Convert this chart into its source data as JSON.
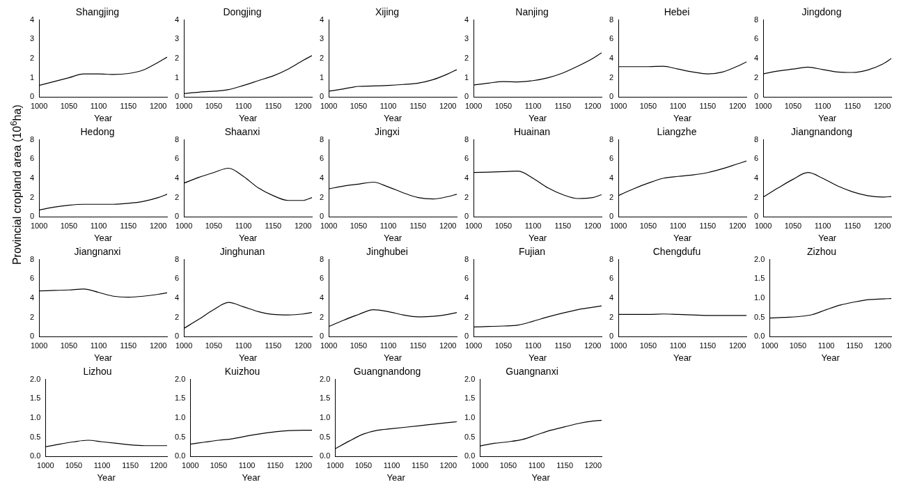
{
  "chart_data": [
    {
      "type": "line",
      "title": "Shangjing",
      "xlabel": "Year",
      "x": [
        1000,
        1025,
        1050,
        1075,
        1100,
        1125,
        1150,
        1175,
        1200,
        1215
      ],
      "values": [
        0.6,
        0.8,
        1.0,
        1.2,
        1.2,
        1.17,
        1.22,
        1.4,
        1.8,
        2.07
      ],
      "color": "#000000",
      "xlim": [
        1000,
        1215
      ],
      "xticks": [
        1000,
        1050,
        1100,
        1150,
        1200
      ],
      "ylim": [
        0,
        4
      ],
      "yticks": [
        0,
        1,
        2,
        3,
        4
      ]
    },
    {
      "type": "line",
      "title": "Dongjing",
      "xlabel": "Year",
      "x": [
        1000,
        1025,
        1050,
        1075,
        1100,
        1125,
        1150,
        1175,
        1200,
        1215
      ],
      "values": [
        0.18,
        0.25,
        0.3,
        0.38,
        0.6,
        0.85,
        1.1,
        1.45,
        1.9,
        2.15
      ],
      "color": "#000000",
      "xlim": [
        1000,
        1215
      ],
      "xticks": [
        1000,
        1050,
        1100,
        1150,
        1200
      ],
      "ylim": [
        0,
        4
      ],
      "yticks": [
        0,
        1,
        2,
        3,
        4
      ]
    },
    {
      "type": "line",
      "title": "Xijing",
      "xlabel": "Year",
      "x": [
        1000,
        1025,
        1050,
        1075,
        1100,
        1125,
        1150,
        1175,
        1200,
        1215
      ],
      "values": [
        0.3,
        0.42,
        0.55,
        0.57,
        0.6,
        0.65,
        0.72,
        0.9,
        1.2,
        1.42
      ],
      "color": "#000000",
      "xlim": [
        1000,
        1215
      ],
      "xticks": [
        1000,
        1050,
        1100,
        1150,
        1200
      ],
      "ylim": [
        0,
        4
      ],
      "yticks": [
        0,
        1,
        2,
        3,
        4
      ]
    },
    {
      "type": "line",
      "title": "Nanjing",
      "xlabel": "Year",
      "x": [
        1000,
        1025,
        1050,
        1075,
        1100,
        1125,
        1150,
        1175,
        1200,
        1215
      ],
      "values": [
        0.62,
        0.72,
        0.8,
        0.78,
        0.85,
        1.0,
        1.25,
        1.6,
        2.0,
        2.3
      ],
      "color": "#000000",
      "xlim": [
        1000,
        1215
      ],
      "xticks": [
        1000,
        1050,
        1100,
        1150,
        1200
      ],
      "ylim": [
        0,
        4
      ],
      "yticks": [
        0,
        1,
        2,
        3,
        4
      ]
    },
    {
      "type": "line",
      "title": "Hebei",
      "xlabel": "Year",
      "x": [
        1000,
        1025,
        1050,
        1075,
        1100,
        1125,
        1150,
        1175,
        1200,
        1215
      ],
      "values": [
        3.15,
        3.15,
        3.15,
        3.2,
        2.9,
        2.6,
        2.4,
        2.6,
        3.2,
        3.65
      ],
      "color": "#000000",
      "xlim": [
        1000,
        1215
      ],
      "xticks": [
        1000,
        1050,
        1100,
        1150,
        1200
      ],
      "ylim": [
        0,
        8
      ],
      "yticks": [
        0,
        2,
        4,
        6,
        8
      ]
    },
    {
      "type": "line",
      "title": "Jingdong",
      "xlabel": "Year",
      "x": [
        1000,
        1025,
        1050,
        1075,
        1100,
        1125,
        1150,
        1175,
        1200,
        1215
      ],
      "values": [
        2.4,
        2.7,
        2.9,
        3.1,
        2.85,
        2.6,
        2.55,
        2.8,
        3.4,
        4.0
      ],
      "color": "#000000",
      "xlim": [
        1000,
        1215
      ],
      "xticks": [
        1000,
        1050,
        1100,
        1150,
        1200
      ],
      "ylim": [
        0,
        8
      ],
      "yticks": [
        0,
        2,
        4,
        6,
        8
      ]
    },
    {
      "type": "line",
      "title": "Hedong",
      "xlabel": "Year",
      "ylabel": "Provincial cropland area (10$^{6}$ha)",
      "x": [
        1000,
        1025,
        1050,
        1075,
        1100,
        1125,
        1150,
        1175,
        1200,
        1215
      ],
      "values": [
        0.7,
        1.0,
        1.2,
        1.3,
        1.3,
        1.3,
        1.4,
        1.6,
        2.0,
        2.35
      ],
      "color": "#000000",
      "xlim": [
        1000,
        1215
      ],
      "xticks": [
        1000,
        1050,
        1100,
        1150,
        1200
      ],
      "ylim": [
        0,
        8
      ],
      "yticks": [
        0,
        2,
        4,
        6,
        8
      ]
    },
    {
      "type": "line",
      "title": "Shaanxi",
      "xlabel": "Year",
      "x": [
        1000,
        1025,
        1050,
        1075,
        1100,
        1125,
        1150,
        1175,
        1200,
        1215
      ],
      "values": [
        3.5,
        4.1,
        4.6,
        5.05,
        4.2,
        3.0,
        2.2,
        1.7,
        1.7,
        2.0
      ],
      "color": "#000000",
      "xlim": [
        1000,
        1215
      ],
      "xticks": [
        1000,
        1050,
        1100,
        1150,
        1200
      ],
      "ylim": [
        0,
        8
      ],
      "yticks": [
        0,
        2,
        4,
        6,
        8
      ]
    },
    {
      "type": "line",
      "title": "Jingxi",
      "xlabel": "Year",
      "x": [
        1000,
        1025,
        1050,
        1075,
        1100,
        1125,
        1150,
        1175,
        1200,
        1215
      ],
      "values": [
        2.9,
        3.2,
        3.4,
        3.6,
        3.1,
        2.5,
        2.0,
        1.85,
        2.1,
        2.35
      ],
      "color": "#000000",
      "xlim": [
        1000,
        1215
      ],
      "xticks": [
        1000,
        1050,
        1100,
        1150,
        1200
      ],
      "ylim": [
        0,
        8
      ],
      "yticks": [
        0,
        2,
        4,
        6,
        8
      ]
    },
    {
      "type": "line",
      "title": "Huainan",
      "xlabel": "Year",
      "x": [
        1000,
        1025,
        1050,
        1075,
        1100,
        1125,
        1150,
        1175,
        1200,
        1215
      ],
      "values": [
        4.6,
        4.65,
        4.7,
        4.75,
        4.0,
        3.0,
        2.3,
        1.9,
        2.0,
        2.3
      ],
      "color": "#000000",
      "xlim": [
        1000,
        1215
      ],
      "xticks": [
        1000,
        1050,
        1100,
        1150,
        1200
      ],
      "ylim": [
        0,
        8
      ],
      "yticks": [
        0,
        2,
        4,
        6,
        8
      ]
    },
    {
      "type": "line",
      "title": "Liangzhe",
      "xlabel": "Year",
      "x": [
        1000,
        1025,
        1050,
        1075,
        1100,
        1125,
        1150,
        1175,
        1200,
        1215
      ],
      "values": [
        2.2,
        2.9,
        3.5,
        4.0,
        4.2,
        4.35,
        4.6,
        5.0,
        5.5,
        5.8
      ],
      "color": "#000000",
      "xlim": [
        1000,
        1215
      ],
      "xticks": [
        1000,
        1050,
        1100,
        1150,
        1200
      ],
      "ylim": [
        0,
        8
      ],
      "yticks": [
        0,
        2,
        4,
        6,
        8
      ]
    },
    {
      "type": "line",
      "title": "Jiangnandong",
      "xlabel": "Year",
      "x": [
        1000,
        1025,
        1050,
        1075,
        1100,
        1125,
        1150,
        1175,
        1200,
        1215
      ],
      "values": [
        2.05,
        3.0,
        3.9,
        4.6,
        4.0,
        3.2,
        2.6,
        2.2,
        2.05,
        2.1
      ],
      "color": "#000000",
      "xlim": [
        1000,
        1215
      ],
      "xticks": [
        1000,
        1050,
        1100,
        1150,
        1200
      ],
      "ylim": [
        0,
        8
      ],
      "yticks": [
        0,
        2,
        4,
        6,
        8
      ]
    },
    {
      "type": "line",
      "title": "Jiangnanxi",
      "xlabel": "Year",
      "x": [
        1000,
        1025,
        1050,
        1075,
        1100,
        1125,
        1150,
        1175,
        1200,
        1215
      ],
      "values": [
        4.75,
        4.8,
        4.85,
        4.95,
        4.6,
        4.2,
        4.1,
        4.2,
        4.4,
        4.55
      ],
      "color": "#000000",
      "xlim": [
        1000,
        1215
      ],
      "xticks": [
        1000,
        1050,
        1100,
        1150,
        1200
      ],
      "ylim": [
        0,
        8
      ],
      "yticks": [
        0,
        2,
        4,
        6,
        8
      ]
    },
    {
      "type": "line",
      "title": "Jinghunan",
      "xlabel": "Year",
      "x": [
        1000,
        1025,
        1050,
        1075,
        1100,
        1125,
        1150,
        1175,
        1200,
        1215
      ],
      "values": [
        0.85,
        1.8,
        2.8,
        3.55,
        3.1,
        2.6,
        2.3,
        2.25,
        2.35,
        2.5
      ],
      "color": "#000000",
      "xlim": [
        1000,
        1215
      ],
      "xticks": [
        1000,
        1050,
        1100,
        1150,
        1200
      ],
      "ylim": [
        0,
        8
      ],
      "yticks": [
        0,
        2,
        4,
        6,
        8
      ]
    },
    {
      "type": "line",
      "title": "Jinghubei",
      "xlabel": "Year",
      "x": [
        1000,
        1025,
        1050,
        1075,
        1100,
        1125,
        1150,
        1175,
        1200,
        1215
      ],
      "values": [
        1.05,
        1.7,
        2.3,
        2.8,
        2.6,
        2.25,
        2.05,
        2.1,
        2.3,
        2.5
      ],
      "color": "#000000",
      "xlim": [
        1000,
        1215
      ],
      "xticks": [
        1000,
        1050,
        1100,
        1150,
        1200
      ],
      "ylim": [
        0,
        8
      ],
      "yticks": [
        0,
        2,
        4,
        6,
        8
      ]
    },
    {
      "type": "line",
      "title": "Fujian",
      "xlabel": "Year",
      "x": [
        1000,
        1025,
        1050,
        1075,
        1100,
        1125,
        1150,
        1175,
        1200,
        1215
      ],
      "values": [
        1.0,
        1.05,
        1.1,
        1.2,
        1.6,
        2.05,
        2.45,
        2.8,
        3.05,
        3.2
      ],
      "color": "#000000",
      "xlim": [
        1000,
        1215
      ],
      "xticks": [
        1000,
        1050,
        1100,
        1150,
        1200
      ],
      "ylim": [
        0,
        8
      ],
      "yticks": [
        0,
        2,
        4,
        6,
        8
      ]
    },
    {
      "type": "line",
      "title": "Chengdufu",
      "xlabel": "Year",
      "x": [
        1000,
        1025,
        1050,
        1075,
        1100,
        1125,
        1150,
        1175,
        1200,
        1215
      ],
      "values": [
        2.3,
        2.3,
        2.3,
        2.35,
        2.3,
        2.25,
        2.2,
        2.2,
        2.2,
        2.2
      ],
      "color": "#000000",
      "xlim": [
        1000,
        1215
      ],
      "xticks": [
        1000,
        1050,
        1100,
        1150,
        1200
      ],
      "ylim": [
        0,
        8
      ],
      "yticks": [
        0,
        2,
        4,
        6,
        8
      ]
    },
    {
      "type": "line",
      "title": "Zizhou",
      "xlabel": "Year",
      "x": [
        1000,
        1025,
        1050,
        1075,
        1100,
        1125,
        1150,
        1175,
        1200,
        1215
      ],
      "values": [
        0.48,
        0.5,
        0.52,
        0.57,
        0.7,
        0.82,
        0.9,
        0.96,
        0.98,
        0.99
      ],
      "color": "#000000",
      "xlim": [
        1000,
        1215
      ],
      "xticks": [
        1000,
        1050,
        1100,
        1150,
        1200
      ],
      "ylim": [
        0,
        2
      ],
      "yticks": [
        {
          "value": 0,
          "label": "0.0"
        },
        0.5,
        {
          "value": 1,
          "label": "1.0"
        },
        1.5,
        {
          "value": 2,
          "label": "2.0"
        }
      ]
    },
    {
      "type": "line",
      "title": "Lizhou",
      "xlabel": "Year",
      "x": [
        1000,
        1025,
        1050,
        1075,
        1100,
        1125,
        1150,
        1175,
        1200,
        1215
      ],
      "values": [
        0.25,
        0.32,
        0.38,
        0.42,
        0.38,
        0.34,
        0.3,
        0.28,
        0.28,
        0.28
      ],
      "color": "#000000",
      "xlim": [
        1000,
        1215
      ],
      "xticks": [
        1000,
        1050,
        1100,
        1150,
        1200
      ],
      "ylim": [
        0,
        2
      ],
      "yticks": [
        {
          "value": 0,
          "label": "0.0"
        },
        0.5,
        {
          "value": 1,
          "label": "1.0"
        },
        1.5,
        {
          "value": 2,
          "label": "2.0"
        }
      ]
    },
    {
      "type": "line",
      "title": "Kuizhou",
      "xlabel": "Year",
      "x": [
        1000,
        1025,
        1050,
        1075,
        1100,
        1125,
        1150,
        1175,
        1200,
        1215
      ],
      "values": [
        0.32,
        0.37,
        0.42,
        0.46,
        0.53,
        0.59,
        0.64,
        0.67,
        0.68,
        0.68
      ],
      "color": "#000000",
      "xlim": [
        1000,
        1215
      ],
      "xticks": [
        1000,
        1050,
        1100,
        1150,
        1200
      ],
      "ylim": [
        0,
        2
      ],
      "yticks": [
        {
          "value": 0,
          "label": "0.0"
        },
        0.5,
        {
          "value": 1,
          "label": "1.0"
        },
        1.5,
        {
          "value": 2,
          "label": "2.0"
        }
      ]
    },
    {
      "type": "line",
      "title": "Guangnandong",
      "xlabel": "Year",
      "x": [
        1000,
        1025,
        1050,
        1075,
        1100,
        1125,
        1150,
        1175,
        1200,
        1215
      ],
      "values": [
        0.2,
        0.4,
        0.58,
        0.68,
        0.72,
        0.76,
        0.8,
        0.84,
        0.88,
        0.9
      ],
      "color": "#000000",
      "xlim": [
        1000,
        1215
      ],
      "xticks": [
        1000,
        1050,
        1100,
        1150,
        1200
      ],
      "ylim": [
        0,
        2
      ],
      "yticks": [
        {
          "value": 0,
          "label": "0.0"
        },
        0.5,
        {
          "value": 1,
          "label": "1.0"
        },
        1.5,
        {
          "value": 2,
          "label": "2.0"
        }
      ]
    },
    {
      "type": "line",
      "title": "Guangnanxi",
      "xlabel": "Year",
      "x": [
        1000,
        1025,
        1050,
        1075,
        1100,
        1125,
        1150,
        1175,
        1200,
        1215
      ],
      "values": [
        0.27,
        0.34,
        0.38,
        0.44,
        0.56,
        0.68,
        0.77,
        0.86,
        0.92,
        0.94
      ],
      "color": "#000000",
      "xlim": [
        1000,
        1215
      ],
      "xticks": [
        1000,
        1050,
        1100,
        1150,
        1200
      ],
      "ylim": [
        0,
        2
      ],
      "yticks": [
        {
          "value": 0,
          "label": "0.0"
        },
        0.5,
        {
          "value": 1,
          "label": "1.0"
        },
        1.5,
        {
          "value": 2,
          "label": "2.0"
        }
      ]
    }
  ]
}
